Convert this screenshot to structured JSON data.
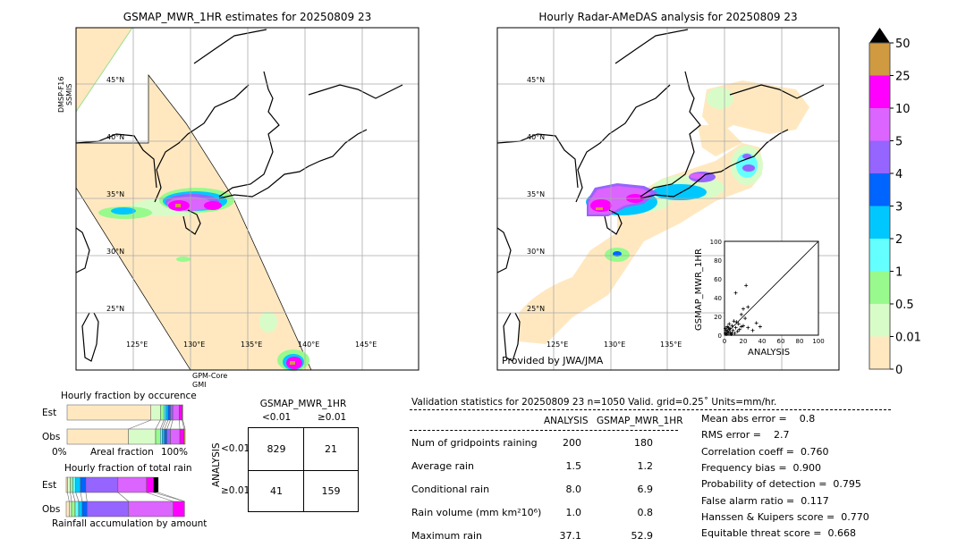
{
  "left_map": {
    "title": "GSMAP_MWR_1HR estimates for 20250809 23",
    "sensor_top": "DMSP-F16\nSSMIS",
    "sensor_top_line1": "DMSP-F16",
    "sensor_top_line2": "SSMIS",
    "sensor_bottom_line1": "GPM-Core",
    "sensor_bottom_line2": "GMI",
    "lat_labels": [
      "45°N",
      "40°N",
      "35°N",
      "30°N",
      "25°N"
    ],
    "lon_labels": [
      "125°E",
      "130°E",
      "135°E",
      "140°E",
      "145°E"
    ]
  },
  "right_map": {
    "title": "Hourly Radar-AMeDAS analysis for 20250809 23",
    "credit": "Provided by JWA/JMA",
    "lat_labels": [
      "45°N",
      "40°N",
      "35°N",
      "30°N",
      "25°N"
    ],
    "lon_labels": [
      "125°E",
      "130°E",
      "135°E"
    ]
  },
  "colorbar": {
    "ticks": [
      "0",
      "0.01",
      "0.5",
      "1",
      "2",
      "3",
      "4",
      "5",
      "10",
      "25",
      "50"
    ],
    "colors": [
      "#ffe8c0",
      "#d8fcc8",
      "#98fa8c",
      "#64ffff",
      "#00c8ff",
      "#0064ff",
      "#9664ff",
      "#dc64ff",
      "#ff00ff",
      "#d09a40"
    ],
    "extend_color": "#000000"
  },
  "chart_data": [
    {
      "type": "scatter",
      "xlabel": "ANALYSIS",
      "ylabel": "GSMAP_MWR_1HR",
      "xlim": [
        0,
        100
      ],
      "ylim": [
        0,
        100
      ],
      "xticks": [
        "0",
        "20",
        "40",
        "60",
        "80",
        "100"
      ],
      "yticks": [
        "0",
        "20",
        "40",
        "60",
        "80",
        "100"
      ],
      "points": [
        [
          12,
          45
        ],
        [
          23,
          53
        ],
        [
          20,
          28
        ],
        [
          25,
          30
        ],
        [
          34,
          13
        ],
        [
          38,
          9
        ],
        [
          30,
          5
        ],
        [
          22,
          18
        ],
        [
          18,
          22
        ],
        [
          15,
          12
        ],
        [
          10,
          15
        ],
        [
          8,
          10
        ],
        [
          5,
          6
        ],
        [
          3,
          4
        ],
        [
          2,
          1
        ],
        [
          6,
          3
        ],
        [
          4,
          8
        ],
        [
          9,
          5
        ],
        [
          12,
          8
        ],
        [
          14,
          4
        ],
        [
          1,
          2
        ],
        [
          7,
          1
        ],
        [
          3,
          9
        ],
        [
          11,
          2
        ],
        [
          16,
          6
        ],
        [
          20,
          10
        ],
        [
          25,
          8
        ],
        [
          5,
          12
        ],
        [
          2,
          5
        ],
        [
          6,
          7
        ],
        [
          8,
          2
        ],
        [
          13,
          14
        ],
        [
          18,
          9
        ],
        [
          1,
          7
        ],
        [
          4,
          2
        ]
      ],
      "reference_line": "y=x"
    },
    {
      "type": "bar",
      "title": "Hourly fraction by occurence",
      "xlabel": "Areal fraction",
      "x_min_label": "0%",
      "x_max_label": "100%",
      "categories": [
        "Est",
        "Obs"
      ],
      "segments": {
        "Est": [
          71,
          8,
          3,
          1.5,
          2,
          2,
          2,
          5.5,
          2.5,
          0.5
        ],
        "Obs": [
          52,
          23,
          4,
          1.5,
          2,
          2,
          3,
          8,
          3.5,
          1
        ]
      }
    },
    {
      "type": "bar",
      "title": "Hourly fraction of total rain",
      "xlabel": "Rainfall accumulation by amount",
      "categories": [
        "Est",
        "Obs"
      ],
      "segments": {
        "Est": [
          1,
          2.5,
          2,
          2.5,
          4,
          4.5,
          27,
          24,
          6,
          4
        ],
        "Obs": [
          2.5,
          2,
          3,
          3,
          3,
          4,
          35,
          37.5,
          9.5,
          0
        ]
      }
    },
    {
      "type": "table",
      "title": "GSMAP_MWR_1HR",
      "col_labels": [
        "<0.01",
        "≥0.01"
      ],
      "row_title": "ANALYSIS",
      "row_labels": [
        "<0.01",
        "≥0.01"
      ],
      "values": [
        [
          829,
          21
        ],
        [
          41,
          159
        ]
      ]
    }
  ],
  "stats": {
    "header": "Validation statistics for 20250809 23  n=1050 Valid. grid=0.25˚ Units=mm/hr.",
    "col_analysis": "ANALYSIS",
    "col_gsmap": "GSMAP_MWR_1HR",
    "rows": [
      {
        "label": "Num of gridpoints raining",
        "a": "200",
        "g": "180"
      },
      {
        "label": "Average rain",
        "a": "1.5",
        "g": "1.2"
      },
      {
        "label": "Conditional rain",
        "a": "8.0",
        "g": "6.9"
      },
      {
        "label": "Rain volume (mm km²10⁶)",
        "a": "1.0",
        "g": "0.8"
      },
      {
        "label": "Maximum rain",
        "a": "37.1",
        "g": "52.9"
      }
    ],
    "scores": [
      "Mean abs error =    0.8",
      "RMS error =    2.7",
      "Correlation coeff =  0.760",
      "Frequency bias =  0.900",
      "Probability of detection =  0.795",
      "False alarm ratio =  0.117",
      "Hanssen & Kuipers score =  0.770",
      "Equitable threat score =  0.668"
    ]
  }
}
